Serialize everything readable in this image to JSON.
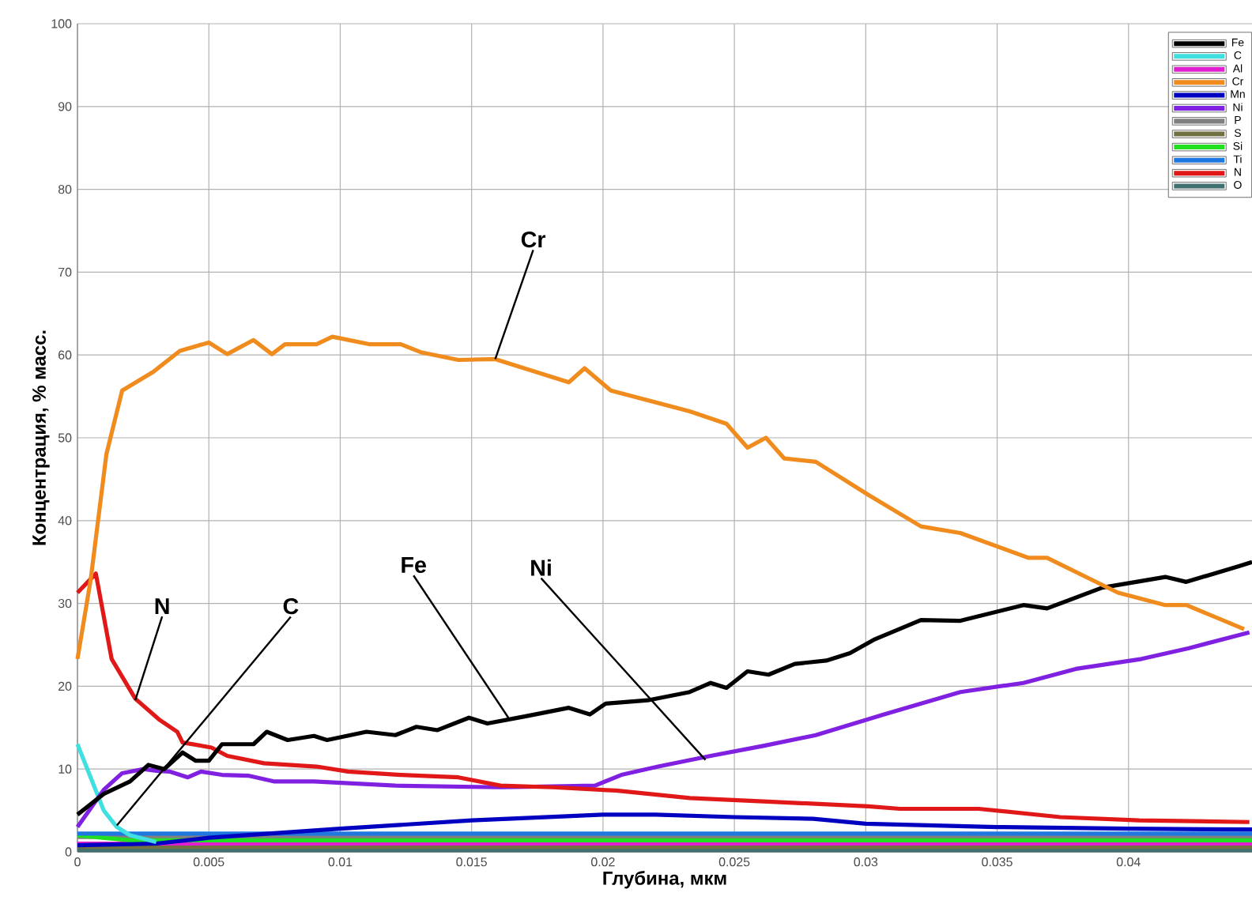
{
  "chart_data": {
    "type": "line",
    "xlabel": "Глубина, мкм",
    "ylabel": "Концентрация, % масс.",
    "xlim": [
      0,
      0.0447
    ],
    "ylim": [
      0,
      100
    ],
    "xticks": [
      0,
      0.005,
      0.01,
      0.015,
      0.02,
      0.025,
      0.03,
      0.035,
      0.04
    ],
    "yticks": [
      0,
      10,
      20,
      30,
      40,
      50,
      60,
      70,
      80,
      90,
      100
    ],
    "grid": true,
    "legend": "top right",
    "annotations": [
      {
        "text": "Cr",
        "x": 0.0159,
        "y": 59.5
      },
      {
        "text": "Fe",
        "x": 0.0164,
        "y": 16.2
      },
      {
        "text": "Ni",
        "x": 0.0239,
        "y": 11.1
      },
      {
        "text": "N",
        "x": 0.0022,
        "y": 18.3
      },
      {
        "text": "C",
        "x": 0.0015,
        "y": 3.2
      }
    ],
    "series": [
      {
        "name": "Fe",
        "color": "#000000",
        "x": [
          0,
          0.001,
          0.002,
          0.0027,
          0.0033,
          0.004,
          0.0045,
          0.005,
          0.0055,
          0.006,
          0.0067,
          0.0072,
          0.008,
          0.009,
          0.0095,
          0.011,
          0.0121,
          0.0129,
          0.0137,
          0.0149,
          0.0156,
          0.0171,
          0.0187,
          0.0195,
          0.0201,
          0.0217,
          0.0233,
          0.0241,
          0.0247,
          0.0255,
          0.0263,
          0.0273,
          0.0285,
          0.0294,
          0.0303,
          0.0321,
          0.0336,
          0.036,
          0.0369,
          0.039,
          0.0414,
          0.0422,
          0.0442,
          0.0447
        ],
        "values": [
          4.5,
          7,
          8.5,
          10.5,
          10,
          12,
          11,
          11,
          13,
          13,
          13,
          14.5,
          13.5,
          14,
          13.5,
          14.5,
          14.1,
          15.1,
          14.7,
          16.2,
          15.5,
          16.4,
          17.4,
          16.6,
          17.9,
          18.3,
          19.3,
          20.4,
          19.8,
          21.8,
          21.4,
          22.7,
          23.1,
          24,
          25.6,
          28,
          27.9,
          29.8,
          29.4,
          31.9,
          33.2,
          32.6,
          34.5,
          35
        ]
      },
      {
        "name": "C",
        "color": "#40e0e0",
        "x": [
          0,
          0.0005,
          0.001,
          0.0015,
          0.002,
          0.003
        ],
        "values": [
          13,
          9,
          5,
          3,
          2,
          1.2
        ]
      },
      {
        "name": "Al",
        "color": "#e020d0",
        "x": [
          0,
          0.01,
          0.02,
          0.03,
          0.0447
        ],
        "values": [
          1.0,
          1.0,
          1.0,
          1.0,
          1.0
        ]
      },
      {
        "name": "Cr",
        "color": "#f08c1e",
        "x": [
          0,
          0.0005,
          0.0011,
          0.0017,
          0.0029,
          0.0039,
          0.005,
          0.0057,
          0.0067,
          0.0074,
          0.0079,
          0.0091,
          0.0097,
          0.0111,
          0.0123,
          0.0131,
          0.0145,
          0.0159,
          0.0187,
          0.0193,
          0.0203,
          0.0233,
          0.0247,
          0.0255,
          0.0262,
          0.0269,
          0.0281,
          0.0301,
          0.0321,
          0.0336,
          0.0362,
          0.0369,
          0.0396,
          0.0414,
          0.0422,
          0.0444
        ],
        "values": [
          23.3,
          32.8,
          48,
          55.7,
          58,
          60.5,
          61.5,
          60.1,
          61.8,
          60.1,
          61.3,
          61.3,
          62.2,
          61.3,
          61.3,
          60.3,
          59.4,
          59.5,
          56.7,
          58.4,
          55.7,
          53.2,
          51.7,
          48.8,
          50,
          47.5,
          47.1,
          43.1,
          39.3,
          38.5,
          35.5,
          35.5,
          31.3,
          29.8,
          29.8,
          26.9
        ]
      },
      {
        "name": "Mn",
        "color": "#0000c0",
        "x": [
          0,
          0.003,
          0.005,
          0.01,
          0.015,
          0.02,
          0.022,
          0.025,
          0.028,
          0.03,
          0.035,
          0.04,
          0.0447
        ],
        "values": [
          0.8,
          1,
          1.7,
          2.8,
          3.8,
          4.5,
          4.5,
          4.2,
          4.0,
          3.4,
          3.0,
          2.8,
          2.7
        ]
      },
      {
        "name": "Ni",
        "color": "#8020e0",
        "x": [
          0,
          0.001,
          0.0017,
          0.0025,
          0.003,
          0.0035,
          0.0042,
          0.0047,
          0.0055,
          0.0065,
          0.0075,
          0.009,
          0.0121,
          0.0161,
          0.0197,
          0.0207,
          0.0221,
          0.0241,
          0.0261,
          0.0281,
          0.0307,
          0.0336,
          0.036,
          0.038,
          0.0405,
          0.0423,
          0.0446
        ],
        "values": [
          3,
          7.5,
          9.5,
          10,
          9.8,
          9.7,
          9,
          9.7,
          9.3,
          9.2,
          8.5,
          8.5,
          8.0,
          7.8,
          8.0,
          9.3,
          10.3,
          11.6,
          12.8,
          14.1,
          16.6,
          19.3,
          20.4,
          22.1,
          23.3,
          24.6,
          26.5
        ]
      },
      {
        "name": "P",
        "color": "#808080",
        "x": [
          0,
          0.01,
          0.02,
          0.03,
          0.0447
        ],
        "values": [
          1.8,
          1.8,
          1.8,
          1.8,
          1.8
        ]
      },
      {
        "name": "S",
        "color": "#707040",
        "x": [
          0,
          0.01,
          0.02,
          0.03,
          0.0447
        ],
        "values": [
          0.6,
          0.6,
          0.6,
          0.6,
          0.6
        ]
      },
      {
        "name": "Si",
        "color": "#20e020",
        "x": [
          0,
          0.002,
          0.01,
          0.02,
          0.03,
          0.0447
        ],
        "values": [
          2,
          1.4,
          1.4,
          1.4,
          1.4,
          1.4
        ]
      },
      {
        "name": "Ti",
        "color": "#1e78e0",
        "x": [
          0,
          0.01,
          0.02,
          0.03,
          0.0447
        ],
        "values": [
          2.2,
          2.2,
          2.2,
          2.2,
          2.2
        ]
      },
      {
        "name": "N",
        "color": "#e01818",
        "x": [
          0,
          0.0007,
          0.0013,
          0.0022,
          0.0031,
          0.0038,
          0.004,
          0.0051,
          0.0057,
          0.0071,
          0.0091,
          0.0103,
          0.0123,
          0.0145,
          0.0161,
          0.0181,
          0.0205,
          0.0233,
          0.0261,
          0.0301,
          0.0313,
          0.0343,
          0.0374,
          0.0404,
          0.0446
        ],
        "values": [
          31.3,
          33.6,
          23.3,
          18.5,
          16,
          14.5,
          13.2,
          12.6,
          11.6,
          10.7,
          10.3,
          9.7,
          9.3,
          9.0,
          8.0,
          7.8,
          7.4,
          6.5,
          6.1,
          5.5,
          5.2,
          5.2,
          4.2,
          3.8,
          3.6
        ]
      },
      {
        "name": "O",
        "color": "#407070",
        "x": [
          0,
          0.01,
          0.02,
          0.03,
          0.0447
        ],
        "values": [
          0.2,
          0.2,
          0.2,
          0.2,
          0.2
        ]
      }
    ]
  }
}
